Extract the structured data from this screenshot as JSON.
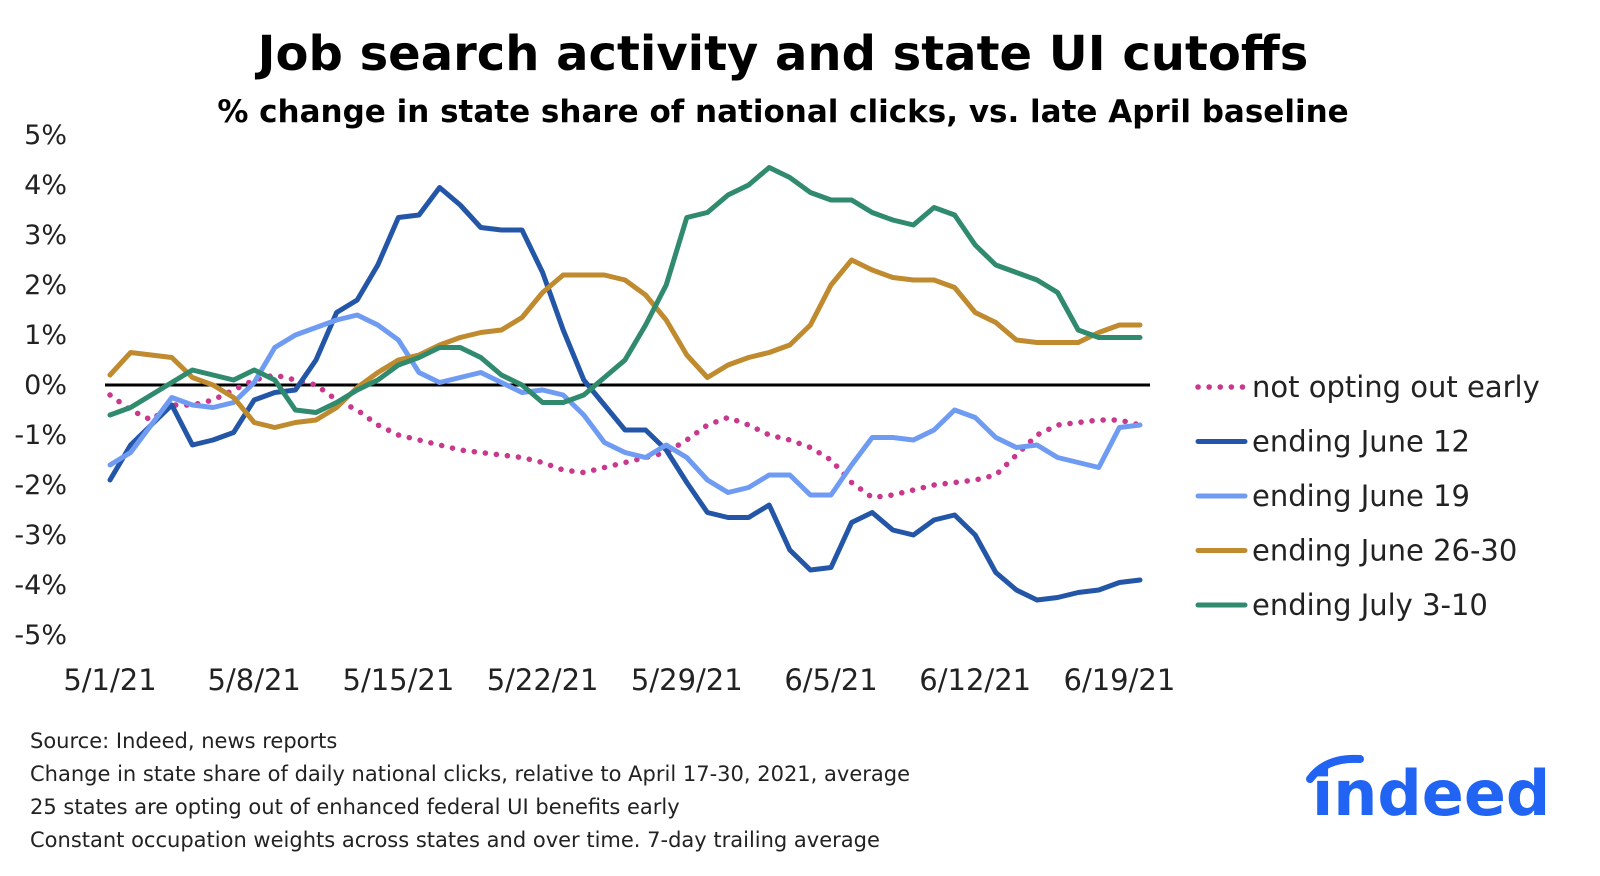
{
  "chart_data": {
    "type": "line",
    "title": "Job search activity and state UI cutoffs",
    "subtitle": "% change in state share of national clicks, vs. late April baseline",
    "ylim": [
      -5,
      5
    ],
    "y_ticks": [
      "5%",
      "4%",
      "3%",
      "2%",
      "1%",
      "0%",
      "-1%",
      "-2%",
      "-3%",
      "-4%",
      "-5%"
    ],
    "x_start": "2021-05-01",
    "x_tick_labels": [
      "5/1/21",
      "5/8/21",
      "5/15/21",
      "5/22/21",
      "5/29/21",
      "6/5/21",
      "6/12/21",
      "6/19/21"
    ],
    "x_tick_dates": [
      "2021-05-01",
      "2021-05-08",
      "2021-05-15",
      "2021-05-22",
      "2021-05-29",
      "2021-06-05",
      "2021-06-12",
      "2021-06-19"
    ],
    "dates": [
      "2021-05-01",
      "2021-05-02",
      "2021-05-03",
      "2021-05-04",
      "2021-05-05",
      "2021-05-06",
      "2021-05-07",
      "2021-05-08",
      "2021-05-09",
      "2021-05-10",
      "2021-05-11",
      "2021-05-12",
      "2021-05-13",
      "2021-05-14",
      "2021-05-15",
      "2021-05-16",
      "2021-05-17",
      "2021-05-18",
      "2021-05-19",
      "2021-05-20",
      "2021-05-21",
      "2021-05-22",
      "2021-05-23",
      "2021-05-24",
      "2021-05-25",
      "2021-05-26",
      "2021-05-27",
      "2021-05-28",
      "2021-05-29",
      "2021-05-30",
      "2021-05-31",
      "2021-06-01",
      "2021-06-02",
      "2021-06-03",
      "2021-06-04",
      "2021-06-05",
      "2021-06-06",
      "2021-06-07",
      "2021-06-08",
      "2021-06-09",
      "2021-06-10",
      "2021-06-11",
      "2021-06-12",
      "2021-06-13",
      "2021-06-14",
      "2021-06-15",
      "2021-06-16",
      "2021-06-17",
      "2021-06-18",
      "2021-06-19",
      "2021-06-20"
    ],
    "zero_line": true,
    "grid": false,
    "legend_position": "right",
    "series": [
      {
        "name": "not opting out early",
        "color": "#c9388d",
        "dash": true,
        "values": [
          -0.2,
          -0.5,
          -0.7,
          -0.4,
          -0.4,
          -0.3,
          -0.1,
          0.1,
          0.2,
          0.1,
          0.0,
          -0.3,
          -0.5,
          -0.8,
          -1.0,
          -1.1,
          -1.2,
          -1.3,
          -1.35,
          -1.4,
          -1.45,
          -1.55,
          -1.7,
          -1.75,
          -1.65,
          -1.55,
          -1.45,
          -1.35,
          -1.1,
          -0.8,
          -0.65,
          -0.8,
          -1.0,
          -1.1,
          -1.25,
          -1.5,
          -1.95,
          -2.25,
          -2.2,
          -2.1,
          -2.0,
          -1.95,
          -1.9,
          -1.8,
          -1.4,
          -1.0,
          -0.8,
          -0.75,
          -0.7,
          -0.7,
          -0.8
        ]
      },
      {
        "name": "ending June 12",
        "color": "#2456a8",
        "dash": false,
        "values": [
          -1.9,
          -1.2,
          -0.8,
          -0.4,
          -1.2,
          -1.1,
          -0.95,
          -0.3,
          -0.15,
          -0.1,
          0.5,
          1.45,
          1.7,
          2.4,
          3.35,
          3.4,
          3.95,
          3.6,
          3.15,
          3.1,
          3.1,
          2.25,
          1.1,
          0.1,
          -0.4,
          -0.9,
          -0.9,
          -1.3,
          -1.95,
          -2.55,
          -2.65,
          -2.65,
          -2.4,
          -3.3,
          -3.7,
          -3.65,
          -2.75,
          -2.55,
          -2.9,
          -3.0,
          -2.7,
          -2.6,
          -3.0,
          -3.75,
          -4.1,
          -4.3,
          -4.25,
          -4.15,
          -4.1,
          -3.95,
          -3.9
        ]
      },
      {
        "name": "ending June 19",
        "color": "#6f9cf2",
        "dash": false,
        "values": [
          -1.6,
          -1.35,
          -0.8,
          -0.25,
          -0.4,
          -0.45,
          -0.35,
          0.05,
          0.75,
          1.0,
          1.15,
          1.3,
          1.4,
          1.2,
          0.9,
          0.25,
          0.05,
          0.15,
          0.25,
          0.05,
          -0.15,
          -0.1,
          -0.2,
          -0.6,
          -1.15,
          -1.35,
          -1.45,
          -1.2,
          -1.45,
          -1.9,
          -2.15,
          -2.05,
          -1.8,
          -1.8,
          -2.2,
          -2.2,
          -1.6,
          -1.05,
          -1.05,
          -1.1,
          -0.9,
          -0.5,
          -0.65,
          -1.05,
          -1.25,
          -1.2,
          -1.45,
          -1.55,
          -1.65,
          -0.85,
          -0.8
        ]
      },
      {
        "name": "ending June 26-30",
        "color": "#c08a2e",
        "dash": false,
        "values": [
          0.2,
          0.65,
          0.6,
          0.55,
          0.15,
          0.0,
          -0.25,
          -0.75,
          -0.85,
          -0.75,
          -0.7,
          -0.45,
          -0.05,
          0.25,
          0.5,
          0.6,
          0.8,
          0.95,
          1.05,
          1.1,
          1.35,
          1.85,
          2.2,
          2.2,
          2.2,
          2.1,
          1.8,
          1.3,
          0.6,
          0.15,
          0.4,
          0.55,
          0.65,
          0.8,
          1.2,
          2.0,
          2.5,
          2.3,
          2.15,
          2.1,
          2.1,
          1.95,
          1.45,
          1.25,
          0.9,
          0.85,
          0.85,
          0.85,
          1.05,
          1.2,
          1.2
        ]
      },
      {
        "name": "ending July 3-10",
        "color": "#2f8a6e",
        "dash": false,
        "values": [
          -0.6,
          -0.45,
          -0.2,
          0.05,
          0.3,
          0.2,
          0.1,
          0.3,
          0.1,
          -0.5,
          -0.55,
          -0.35,
          -0.1,
          0.1,
          0.4,
          0.55,
          0.75,
          0.75,
          0.55,
          0.2,
          0.0,
          -0.35,
          -0.35,
          -0.2,
          0.15,
          0.5,
          1.2,
          2.0,
          3.35,
          3.45,
          3.8,
          4.0,
          4.35,
          4.15,
          3.85,
          3.7,
          3.7,
          3.45,
          3.3,
          3.2,
          3.55,
          3.4,
          2.8,
          2.4,
          2.25,
          2.1,
          1.85,
          1.1,
          0.95,
          0.95,
          0.95
        ]
      }
    ]
  },
  "notes": [
    "Source: Indeed, news reports",
    "Change in state share of daily national clicks, relative to April 17-30, 2021, average",
    "25 states are opting out of enhanced federal UI benefits early",
    "Constant occupation weights across states and over time. 7-day trailing average"
  ],
  "logo": {
    "text": "indeed",
    "color": "#2164f3"
  }
}
